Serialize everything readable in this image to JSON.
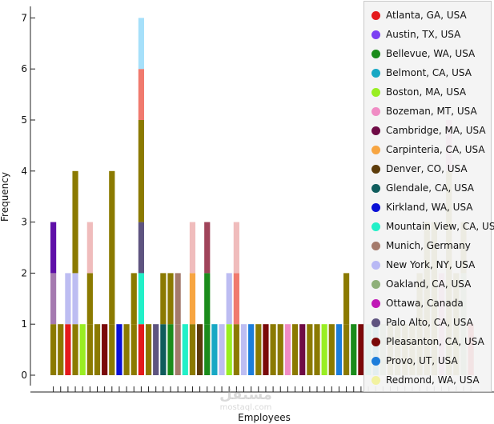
{
  "chart_data": {
    "type": "bar",
    "stacked": true,
    "title": "",
    "xlabel": "Employees",
    "ylabel": "Frequency",
    "ylim": [
      0,
      7
    ],
    "yticks": [
      "0",
      "1",
      "2",
      "3",
      "4",
      "5",
      "6",
      "7"
    ],
    "legend_position": "right",
    "legend": [
      {
        "name": "Atlanta, GA, USA",
        "color": "#e41a1c"
      },
      {
        "name": "Austin, TX, USA",
        "color": "#7b3ff2"
      },
      {
        "name": "Bellevue, WA, USA",
        "color": "#1b8c1b"
      },
      {
        "name": "Belmont, CA, USA",
        "color": "#17a8c4"
      },
      {
        "name": "Boston, MA, USA",
        "color": "#99ee22"
      },
      {
        "name": "Bozeman, MT, USA",
        "color": "#f08cc4"
      },
      {
        "name": "Cambridge, MA, USA",
        "color": "#6e0a45"
      },
      {
        "name": "Carpinteria, CA, USA",
        "color": "#f7a541"
      },
      {
        "name": "Denver, CO, USA",
        "color": "#5c3b0a"
      },
      {
        "name": "Glendale, CA, USA",
        "color": "#0f5c5c"
      },
      {
        "name": "Kirkland, WA, USA",
        "color": "#0a10d6"
      },
      {
        "name": "Mountain View, CA, USA",
        "color": "#22f0c8"
      },
      {
        "name": "Munich, Germany",
        "color": "#a47a6b"
      },
      {
        "name": "New York, NY, USA",
        "color": "#b9b9f5"
      },
      {
        "name": "Oakland, CA, USA",
        "color": "#8fb07a"
      },
      {
        "name": "Ottawa, Canada",
        "color": "#c019b6"
      },
      {
        "name": "Palo Alto, CA, USA",
        "color": "#5e5480"
      },
      {
        "name": "Pleasanton, CA, USA",
        "color": "#7a0a0a"
      },
      {
        "name": "Provo, UT, USA",
        "color": "#1c7ddb"
      },
      {
        "name": "Redmond, WA, USA",
        "color": "#f2f2a0"
      }
    ],
    "bars": [
      [
        [
          "#8b7a00",
          1
        ],
        [
          "#a57ab0",
          1
        ],
        [
          "#5f10a8",
          1
        ]
      ],
      [
        [
          "#8b7a00",
          1
        ]
      ],
      [
        [
          "#e41a1c",
          1
        ],
        [
          "#bdbdf2",
          1
        ]
      ],
      [
        [
          "#8b7a00",
          1
        ],
        [
          "#bdbdf2",
          1
        ],
        [
          "#8b7a00",
          2
        ]
      ],
      [
        [
          "#99ee22",
          1
        ]
      ],
      [
        [
          "#8b7a00",
          1
        ],
        [
          "#8b7a00",
          1
        ],
        [
          "#f0bcbc",
          1
        ]
      ],
      [
        [
          "#8b7a00",
          1
        ]
      ],
      [
        [
          "#7a0a0a",
          1
        ]
      ],
      [
        [
          "#8b7a00",
          1
        ],
        [
          "#8b7a00",
          3
        ]
      ],
      [
        [
          "#0a10d6",
          1
        ]
      ],
      [
        [
          "#8b7a00",
          1
        ]
      ],
      [
        [
          "#8b7a00",
          1
        ],
        [
          "#8b7a00",
          1
        ]
      ],
      [
        [
          "#e41a1c",
          1
        ],
        [
          "#22f0c8",
          1
        ],
        [
          "#5e5480",
          1
        ],
        [
          "#8b7a00",
          2
        ],
        [
          "#f07a6e",
          1
        ],
        [
          "#a6e0fa",
          1
        ]
      ],
      [
        [
          "#8b7a00",
          1
        ]
      ],
      [
        [
          "#5e5480",
          1
        ]
      ],
      [
        [
          "#0f5c5c",
          1
        ],
        [
          "#8b7a00",
          1
        ]
      ],
      [
        [
          "#1b8c1b",
          1
        ],
        [
          "#8b7a00",
          1
        ]
      ],
      [
        [
          "#a47a6b",
          1
        ],
        [
          "#a47a6b",
          1
        ]
      ],
      [
        [
          "#22f0c8",
          1
        ]
      ],
      [
        [
          "#8b7a00",
          1
        ],
        [
          "#f7a541",
          1
        ],
        [
          "#f0bcbc",
          1
        ]
      ],
      [
        [
          "#5c3b0a",
          1
        ]
      ],
      [
        [
          "#1b8c1b",
          1
        ],
        [
          "#1b8c1b",
          1
        ],
        [
          "#a0445a",
          1
        ]
      ],
      [
        [
          "#17a8c4",
          1
        ]
      ],
      [
        [
          "#bdbdf2",
          1
        ]
      ],
      [
        [
          "#99ee22",
          1
        ],
        [
          "#bdbdf2",
          1
        ]
      ],
      [
        [
          "#8b7a00",
          1
        ],
        [
          "#f07a6e",
          1
        ],
        [
          "#f0bcbc",
          1
        ]
      ],
      [
        [
          "#bdbdf2",
          1
        ]
      ],
      [
        [
          "#1c7ddb",
          1
        ]
      ],
      [
        [
          "#8b7a00",
          1
        ]
      ],
      [
        [
          "#7a0a0a",
          1
        ]
      ],
      [
        [
          "#8b7a00",
          1
        ]
      ],
      [
        [
          "#8b7a00",
          1
        ]
      ],
      [
        [
          "#f08cc4",
          1
        ]
      ],
      [
        [
          "#8b7a00",
          1
        ]
      ],
      [
        [
          "#6e0a45",
          1
        ]
      ],
      [
        [
          "#8b7a00",
          1
        ]
      ],
      [
        [
          "#8b7a00",
          1
        ]
      ],
      [
        [
          "#99ee22",
          1
        ]
      ],
      [
        [
          "#8b7a00",
          1
        ]
      ],
      [
        [
          "#1c7ddb",
          1
        ]
      ],
      [
        [
          "#8b7a00",
          1
        ],
        [
          "#8b7a00",
          1
        ]
      ],
      [
        [
          "#1b8c1b",
          1
        ]
      ],
      [
        [
          "#7a0a0a",
          1
        ]
      ],
      [
        [
          "#22f0c8",
          1
        ]
      ],
      [
        [
          "#17a8c4",
          1
        ]
      ],
      [
        [
          "#8fb07a",
          1
        ]
      ],
      [
        [
          "#8b7a00",
          1
        ]
      ],
      [
        [
          "#8b7a00",
          1
        ]
      ],
      [
        [
          "#8b7a00",
          1
        ]
      ],
      [
        [
          "#8b7a00",
          1
        ]
      ],
      [
        [
          "#8b7a00",
          1
        ],
        [
          "#8b7a00",
          1
        ]
      ],
      [
        [
          "#8b7a00",
          1
        ],
        [
          "#8b7a00",
          2
        ]
      ],
      [
        [
          "#8b7a00",
          1
        ],
        [
          "#8b7a00",
          2
        ]
      ],
      [
        [
          "#f08cc4",
          1
        ],
        [
          "#f08cc4",
          1
        ]
      ],
      [
        [
          "#8b7a00",
          1
        ],
        [
          "#8b7a00",
          3
        ],
        [
          "#f08cc4",
          1
        ]
      ],
      [
        [
          "#8b7a00",
          1
        ],
        [
          "#8b7a00",
          1
        ]
      ],
      [
        [
          "#8fb07a",
          1
        ],
        [
          "#8fb07a",
          1
        ],
        [
          "#8b7a00",
          1
        ]
      ],
      [
        [
          "#e41a1c",
          1
        ]
      ]
    ]
  },
  "watermark": {
    "main": "مستقل",
    "sub": "mostaql.com"
  }
}
